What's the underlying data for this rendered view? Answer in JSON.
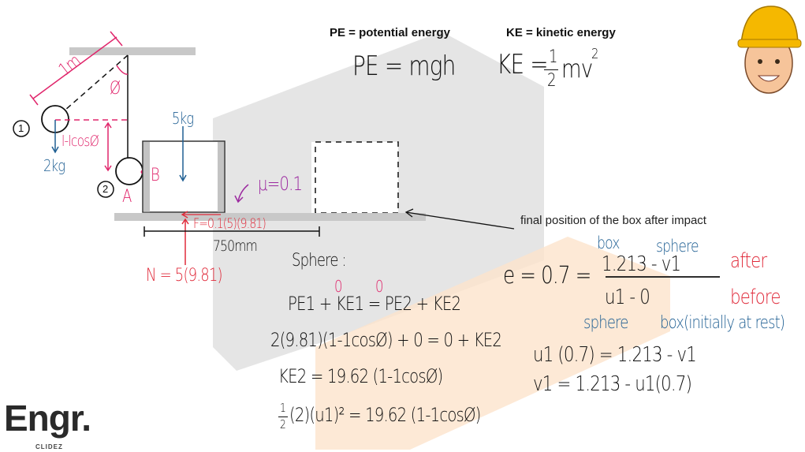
{
  "definitions": {
    "pe_def": "PE = potential energy",
    "ke_def": "KE = kinetic energy",
    "pe_formula": "PE = mgh",
    "ke_formula_left": "KE =",
    "ke_formula_frac_num": "1",
    "ke_formula_frac_den": "2",
    "ke_formula_right": "mv",
    "ke_formula_exp": "2"
  },
  "diagram": {
    "length_label": "1m",
    "angle_label": "Ø",
    "position1_label": "1",
    "position2_label": "2",
    "height_label": "l-lcosØ",
    "sphere_mass": "2kg",
    "box_mass": "5kg",
    "point_a": "A",
    "point_b": "B",
    "mu_label": "μ=0.1",
    "friction_label": "F=0.1(5)(9.81)",
    "normal_label": "N = 5(9.81)",
    "distance_label": "750mm",
    "final_position_note": "final position of the box after impact"
  },
  "sphere_work": {
    "heading": "Sphere :",
    "eq1": "PE1 + KE1 = PE2 + KE2",
    "zero_a": "0",
    "zero_b": "0",
    "eq2": "2(9.81)(1-1cosØ) + 0 = 0 + KE2",
    "eq3": "KE2 = 19.62 (1-1cosØ)",
    "eq4_frac_num": "1",
    "eq4_frac_den": "2",
    "eq4": "(2)(u1)² = 19.62 (1-1cosØ)"
  },
  "restitution": {
    "lhs": "e = 0.7 =",
    "numerator": "1.213 - v1",
    "denominator": "u1  -  0",
    "box_top": "box",
    "sphere_top": "sphere",
    "sphere_bottom": "sphere",
    "box_bottom": "box(initially at rest)",
    "after": "after",
    "before": "before",
    "eq5": "u1 (0.7) = 1.213 - v1",
    "eq6": "v1 = 1.213 - u1(0.7)"
  },
  "logo": {
    "text": "Engr.",
    "sub": "CLIDEZ"
  },
  "colors": {
    "blue": "#1f5f93",
    "pink": "#e0256b",
    "red": "#e02a3a",
    "purple": "#9c2aa0",
    "watermark_gray": "#d9d9d9",
    "watermark_orange": "#fde3cc"
  }
}
